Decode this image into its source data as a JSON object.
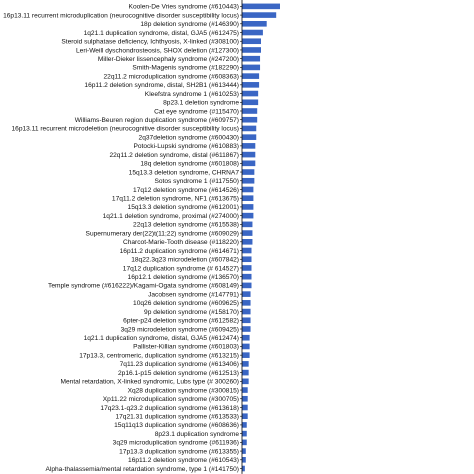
{
  "chart_data": {
    "type": "bar",
    "orientation": "horizontal",
    "title": "",
    "xlabel": "",
    "ylabel": "",
    "grid": false,
    "legend": "none",
    "bar_color": "#3a66c4",
    "categories": [
      "Koolen-De Vries syndrome (#610443)",
      "16p13.11 recurrent microduplication (neurocognitive disorder susceptibility locus)",
      "18p deletion syndrome (#146390)",
      "1q21.1 duplication syndrome, distal, GJA5 (#612475)",
      "Steroid sulphatase deficiency, Ichthyosis, X-linked (#308100)",
      "Leri-Weill dyschondrosteosis, SHOX deletion (#127300)",
      "Miller-Dieker lissencephaly syndrome (#247200)",
      "Smith-Magenis syndrome (#182290)",
      "22q11.2 microduplication syndrome (#608363)",
      "16p11.2 deletion syndrome, distal, SH2B1 (#613444)",
      "Kleefstra syndrome 1 (#610253)",
      "8p23.1 deletion syndrome",
      "Cat eye syndrome (#115470)",
      "Williams-Beuren region duplication syndrome (#609757)",
      "16p13.11 recurrent microdeletion (neurocognitive disorder susceptibility locus)",
      "2q37deletion syndrome (#600430)",
      "Potocki-Lupski syndrome (#610883)",
      "22q11.2 deletion syndrome, distal (#611867)",
      "18q deletion syndrome (#601808)",
      "15q13.3 deletion syndrome, CHRNA7",
      "Sotos syndrome 1 (#117550)",
      "17q12 deletion syndrome (#614526)",
      "17q11.2 deletion syndrome, NF1 (#613675)",
      "15q13.3 deletion syndrome (#612001)",
      "1q21.1 deletion syndrome, proximal (#274000)",
      "22q13 deletion syndrome (#615538)",
      "Supernumerary der(22)t(11;22) syndrome (#609029)",
      "Charcot-Marie-Tooth disease (#118220)",
      "16p11.2 duplication syndrome (#614671)",
      "18q22.3q23 microdeletion (#607842)",
      "17q12 duplication syndrome (# 614527)",
      "16p12.1 deletion syndrome (#136570)",
      "Temple syndrome (#616222)/Kagami-Ogata syndrome (#608149)",
      "Jacobsen syndrome (#147791)",
      "10q26 deletion syndrome (#609625)",
      "9p deletion syndrome (#158170)",
      "6pter-p24 deletion syndrome (#612582)",
      "3q29 microdeletion syndrome (#609425)",
      "1q21.1 duplication syndrome, distal, GJA5 (#612474)",
      "Pallister-Killian syndrome (#601803)",
      "17p13.3, centromeric, duplication syndrome (#613215)",
      "7q11.23 duplication syndrome (#613406)",
      "2p16.1-p15 deletion syndrome (#612513)",
      "Mental retardation, X-linked syndromic, Lubs type (# 300260)",
      "Xq28 duplication syndrome (#300815)",
      "Xp11.22 microduplication syndrome (#300705)",
      "17q23.1-q23.2 duplication syndrome (#613618)",
      "17q21.31 duplication syndrome (#613533)",
      "15q11q13 duplication syndrome (#608636)",
      "8p23.1 duplication syndrome",
      "3q29 microduplication syndrome (#611936)",
      "17p13.3 duplication syndrome (#613355)",
      "16p11.2 deletion syndrome (#610543)",
      "Alpha-thalassemia/mental retardation syndrome, type 1 (#141750)"
    ],
    "values": [
      40,
      36,
      26,
      22,
      20,
      20,
      19,
      19,
      18,
      18,
      17,
      17,
      16,
      16,
      15,
      15,
      14,
      14,
      14,
      13,
      13,
      12,
      12,
      12,
      12,
      11,
      11,
      11,
      10,
      10,
      10,
      10,
      10,
      9,
      9,
      9,
      9,
      9,
      8,
      8,
      8,
      7,
      7,
      7,
      6,
      6,
      6,
      6,
      5,
      5,
      5,
      4,
      4,
      3
    ]
  }
}
